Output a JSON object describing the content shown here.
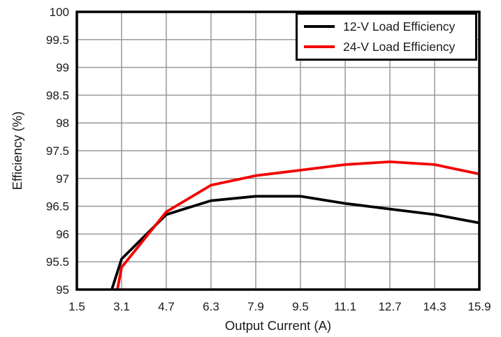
{
  "chart_data": {
    "type": "line",
    "title": "",
    "xlabel": "Output Current (A)",
    "ylabel": "Efficiency (%)",
    "xlim": [
      1.5,
      15.9
    ],
    "ylim": [
      95,
      100
    ],
    "x_ticks": [
      1.5,
      3.1,
      4.7,
      6.3,
      7.9,
      9.5,
      11.1,
      12.7,
      14.3,
      15.9
    ],
    "x_tick_labels": [
      "1.5",
      "3.1",
      "4.7",
      "6.3",
      "7.9",
      "9.5",
      "11.1",
      "12.7",
      "14.3",
      "15.9"
    ],
    "y_ticks": [
      95,
      95.5,
      96,
      96.5,
      97,
      97.5,
      98,
      98.5,
      99,
      99.5,
      100
    ],
    "y_tick_labels": [
      "95",
      "95.5",
      "96",
      "96.5",
      "97",
      "97.5",
      "98",
      "98.5",
      "99",
      "99.5",
      "100"
    ],
    "grid": true,
    "legend_position": "top-right",
    "series": [
      {
        "name": "12-V Load Efficiency",
        "color": "#000000",
        "points": [
          [
            2.75,
            95.0
          ],
          [
            3.1,
            95.55
          ],
          [
            4.7,
            96.35
          ],
          [
            6.3,
            96.6
          ],
          [
            7.9,
            96.68
          ],
          [
            9.5,
            96.68
          ],
          [
            11.1,
            96.55
          ],
          [
            12.7,
            96.45
          ],
          [
            14.3,
            96.35
          ],
          [
            15.9,
            96.2
          ]
        ]
      },
      {
        "name": "24-V Load Efficiency",
        "color": "#f20000",
        "points": [
          [
            2.95,
            95.0
          ],
          [
            3.1,
            95.4
          ],
          [
            4.7,
            96.4
          ],
          [
            6.3,
            96.88
          ],
          [
            7.9,
            97.05
          ],
          [
            9.5,
            97.15
          ],
          [
            11.1,
            97.25
          ],
          [
            12.7,
            97.3
          ],
          [
            14.3,
            97.25
          ],
          [
            15.9,
            97.08
          ]
        ]
      }
    ]
  },
  "colors": {
    "grid": "#999999",
    "frame": "#000000",
    "text": "#1a1a1a",
    "background": "#ffffff"
  }
}
